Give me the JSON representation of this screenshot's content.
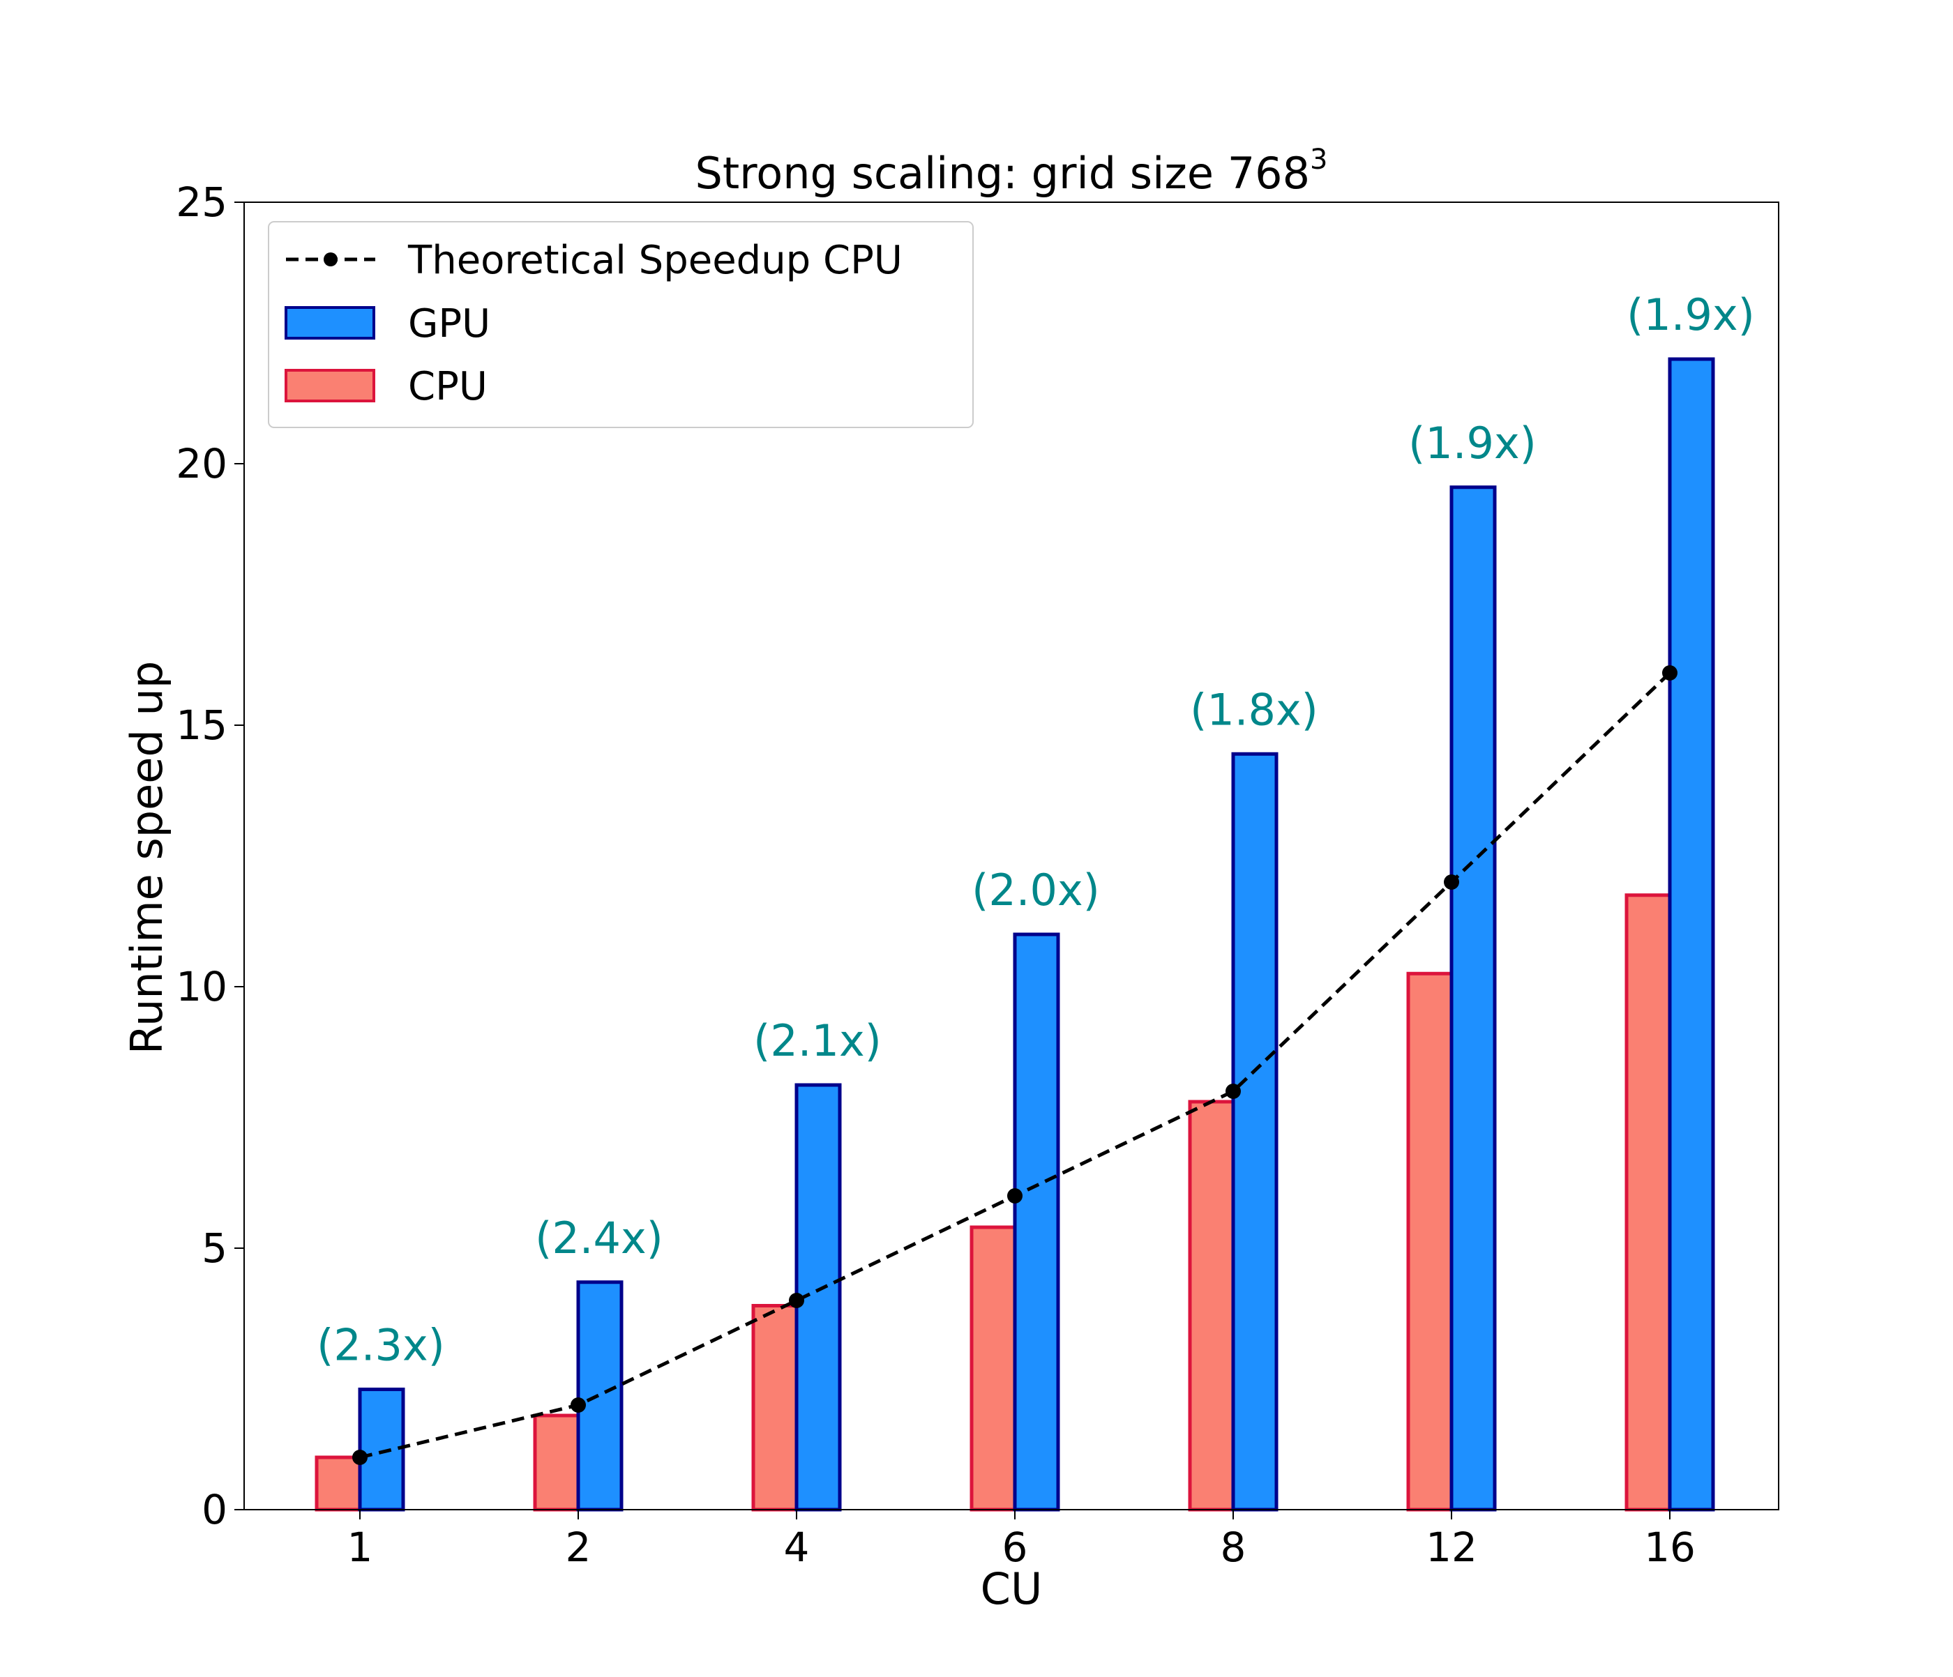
{
  "chart_data": {
    "type": "bar",
    "title": "Strong scaling: grid size 768",
    "title_superscript": "3",
    "xlabel": "CU",
    "ylabel": "Runtime speed up",
    "ylim": [
      0,
      25
    ],
    "yticks": [
      0,
      5,
      10,
      15,
      20,
      25
    ],
    "categories": [
      "1",
      "2",
      "4",
      "6",
      "8",
      "12",
      "16"
    ],
    "series": [
      {
        "name": "CPU",
        "kind": "bar",
        "values": [
          1.0,
          1.8,
          3.9,
          5.4,
          7.8,
          10.25,
          11.75
        ],
        "fill": "#fa8072",
        "stroke": "#dc143c"
      },
      {
        "name": "GPU",
        "kind": "bar",
        "values": [
          2.3,
          4.35,
          8.12,
          11.0,
          14.45,
          19.55,
          22.0
        ],
        "fill": "#1e90ff",
        "stroke": "#00008b"
      },
      {
        "name": "Theoretical Speedup CPU",
        "kind": "line",
        "values": [
          1,
          2,
          4,
          6,
          8,
          12,
          16
        ],
        "stroke": "#000000"
      }
    ],
    "annotations": [
      "(2.3x)",
      "(2.4x)",
      "(2.1x)",
      "(2.0x)",
      "(1.8x)",
      "(1.9x)",
      "(1.9x)"
    ],
    "annotation_color": "#00878a",
    "legend": {
      "placement": "top-left",
      "entries": [
        "Theoretical Speedup CPU",
        "GPU",
        "CPU"
      ]
    },
    "grid": false
  }
}
